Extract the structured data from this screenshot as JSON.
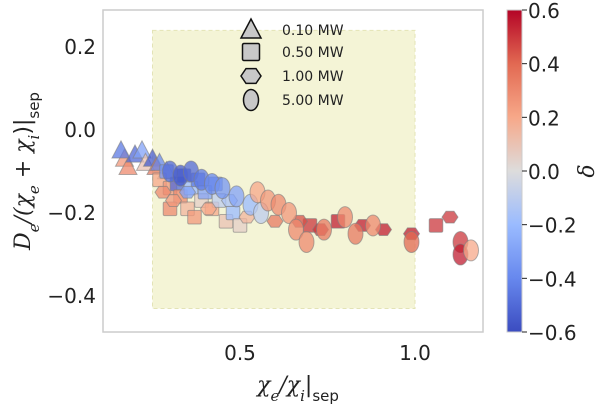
{
  "chart_data": {
    "type": "scatter",
    "xlabel": "χe/χi|sep",
    "ylabel": "De/(χe + χi)|sep",
    "colorbar_label": "δ",
    "xlim": [
      0.1,
      1.2
    ],
    "ylim": [
      -0.5,
      0.3
    ],
    "x_ticks": [
      {
        "value": 0.5,
        "label": "0.5"
      },
      {
        "value": 1.0,
        "label": "1.0"
      }
    ],
    "y_ticks": [
      {
        "value": 0.2,
        "label": "0.2"
      },
      {
        "value": 0.0,
        "label": "0.0"
      },
      {
        "value": -0.2,
        "label": "−0.2"
      },
      {
        "value": -0.4,
        "label": "−0.4"
      }
    ],
    "colorbar": {
      "min": -0.6,
      "max": 0.6,
      "colormap": "coolwarm",
      "ticks": [
        {
          "value": 0.6,
          "label": "0.6"
        },
        {
          "value": 0.4,
          "label": "0.4"
        },
        {
          "value": 0.2,
          "label": "0.2"
        },
        {
          "value": 0.0,
          "label": "0.0"
        },
        {
          "value": -0.2,
          "label": "−0.2"
        },
        {
          "value": -0.4,
          "label": "−0.4"
        },
        {
          "value": -0.6,
          "label": "−0.6"
        }
      ]
    },
    "shaded_region": {
      "x": [
        0.25,
        1.0
      ],
      "y": [
        -0.43,
        0.24
      ],
      "color": "#f3f3cf"
    },
    "legend": {
      "position": "top-center",
      "entries": [
        {
          "marker": "triangle",
          "label": "0.10 MW"
        },
        {
          "marker": "square",
          "label": "0.50 MW"
        },
        {
          "marker": "hexagon",
          "label": "1.00 MW"
        },
        {
          "marker": "circle",
          "label": "5.00 MW"
        }
      ]
    },
    "series": [
      {
        "marker": "triangle",
        "points": [
          {
            "x": 0.17,
            "y": -0.07,
            "d": 0.25
          },
          {
            "x": 0.18,
            "y": -0.09,
            "d": 0.3
          },
          {
            "x": 0.16,
            "y": -0.05,
            "d": -0.45
          },
          {
            "x": 0.2,
            "y": -0.06,
            "d": -0.5
          },
          {
            "x": 0.22,
            "y": -0.05,
            "d": -0.3
          },
          {
            "x": 0.23,
            "y": -0.08,
            "d": 0.1
          },
          {
            "x": 0.25,
            "y": -0.07,
            "d": -0.55
          },
          {
            "x": 0.26,
            "y": -0.09,
            "d": 0.35
          },
          {
            "x": 0.27,
            "y": -0.08,
            "d": -0.4
          },
          {
            "x": 0.29,
            "y": -0.1,
            "d": 0.0
          }
        ]
      },
      {
        "marker": "square",
        "points": [
          {
            "x": 0.27,
            "y": -0.12,
            "d": 0.2
          },
          {
            "x": 0.29,
            "y": -0.1,
            "d": -0.35
          },
          {
            "x": 0.3,
            "y": -0.14,
            "d": 0.25
          },
          {
            "x": 0.32,
            "y": -0.13,
            "d": -0.5
          },
          {
            "x": 0.33,
            "y": -0.16,
            "d": 0.3
          },
          {
            "x": 0.34,
            "y": -0.11,
            "d": -0.55
          },
          {
            "x": 0.35,
            "y": -0.19,
            "d": 0.15
          },
          {
            "x": 0.36,
            "y": -0.14,
            "d": -0.2
          },
          {
            "x": 0.38,
            "y": -0.12,
            "d": -0.45
          },
          {
            "x": 0.39,
            "y": -0.17,
            "d": 0.05
          },
          {
            "x": 0.4,
            "y": -0.15,
            "d": -0.3
          },
          {
            "x": 0.42,
            "y": -0.19,
            "d": 0.2
          },
          {
            "x": 0.44,
            "y": -0.17,
            "d": -0.1
          },
          {
            "x": 0.46,
            "y": -0.22,
            "d": 0.1
          },
          {
            "x": 0.48,
            "y": -0.2,
            "d": -0.2
          },
          {
            "x": 0.5,
            "y": -0.23,
            "d": 0.05
          },
          {
            "x": 0.3,
            "y": -0.19,
            "d": 0.3
          },
          {
            "x": 0.37,
            "y": -0.21,
            "d": 0.25
          },
          {
            "x": 0.43,
            "y": -0.13,
            "d": -0.4
          },
          {
            "x": 0.7,
            "y": -0.23,
            "d": 0.5
          },
          {
            "x": 0.78,
            "y": -0.22,
            "d": 0.55
          },
          {
            "x": 1.06,
            "y": -0.23,
            "d": 0.5
          }
        ]
      },
      {
        "marker": "hexagon",
        "points": [
          {
            "x": 0.28,
            "y": -0.15,
            "d": 0.3
          },
          {
            "x": 0.31,
            "y": -0.17,
            "d": 0.25
          },
          {
            "x": 0.35,
            "y": -0.15,
            "d": -0.3
          },
          {
            "x": 0.41,
            "y": -0.19,
            "d": 0.2
          },
          {
            "x": 0.47,
            "y": -0.17,
            "d": -0.15
          },
          {
            "x": 0.52,
            "y": -0.21,
            "d": 0.15
          },
          {
            "x": 0.6,
            "y": -0.22,
            "d": 0.35
          },
          {
            "x": 0.67,
            "y": -0.22,
            "d": 0.45
          },
          {
            "x": 0.73,
            "y": -0.24,
            "d": 0.5
          },
          {
            "x": 0.85,
            "y": -0.23,
            "d": 0.55
          },
          {
            "x": 0.91,
            "y": -0.24,
            "d": 0.55
          },
          {
            "x": 0.99,
            "y": -0.25,
            "d": 0.55
          },
          {
            "x": 1.1,
            "y": -0.21,
            "d": 0.5
          }
        ]
      },
      {
        "marker": "circle",
        "points": [
          {
            "x": 0.3,
            "y": -0.1,
            "d": -0.5
          },
          {
            "x": 0.33,
            "y": -0.11,
            "d": -0.55
          },
          {
            "x": 0.36,
            "y": -0.1,
            "d": -0.5
          },
          {
            "x": 0.39,
            "y": -0.12,
            "d": -0.45
          },
          {
            "x": 0.42,
            "y": -0.13,
            "d": -0.4
          },
          {
            "x": 0.45,
            "y": -0.14,
            "d": -0.35
          },
          {
            "x": 0.49,
            "y": -0.16,
            "d": -0.3
          },
          {
            "x": 0.53,
            "y": -0.18,
            "d": -0.2
          },
          {
            "x": 0.56,
            "y": -0.2,
            "d": -0.1
          },
          {
            "x": 0.55,
            "y": -0.15,
            "d": 0.2
          },
          {
            "x": 0.58,
            "y": -0.17,
            "d": 0.25
          },
          {
            "x": 0.61,
            "y": -0.18,
            "d": 0.3
          },
          {
            "x": 0.64,
            "y": -0.2,
            "d": 0.25
          },
          {
            "x": 0.66,
            "y": -0.24,
            "d": 0.3
          },
          {
            "x": 0.69,
            "y": -0.27,
            "d": 0.3
          },
          {
            "x": 0.74,
            "y": -0.24,
            "d": 0.35
          },
          {
            "x": 0.8,
            "y": -0.21,
            "d": 0.3
          },
          {
            "x": 0.83,
            "y": -0.25,
            "d": 0.35
          },
          {
            "x": 0.88,
            "y": -0.23,
            "d": 0.3
          },
          {
            "x": 0.99,
            "y": -0.27,
            "d": 0.4
          },
          {
            "x": 1.13,
            "y": -0.27,
            "d": 0.5
          },
          {
            "x": 1.13,
            "y": -0.3,
            "d": 0.55
          },
          {
            "x": 1.16,
            "y": -0.29,
            "d": 0.2
          }
        ]
      }
    ]
  }
}
